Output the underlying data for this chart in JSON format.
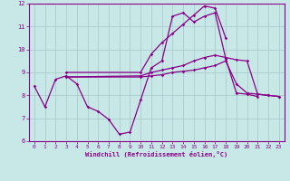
{
  "bg_color": "#c8e8e8",
  "grid_color": "#aacccc",
  "line_color": "#880088",
  "xlabel": "Windchill (Refroidissement éolien,°C)",
  "xlim": [
    -0.5,
    23.5
  ],
  "ylim": [
    6,
    12
  ],
  "yticks": [
    6,
    7,
    8,
    9,
    10,
    11,
    12
  ],
  "xticks": [
    0,
    1,
    2,
    3,
    4,
    5,
    6,
    7,
    8,
    9,
    10,
    11,
    12,
    13,
    14,
    15,
    16,
    17,
    18,
    19,
    20,
    21,
    22,
    23
  ],
  "line1_x": [
    0,
    1,
    2,
    3,
    4,
    5,
    6,
    7,
    8,
    9,
    10,
    11,
    12,
    13,
    14,
    15,
    16,
    17,
    18,
    19,
    20,
    21
  ],
  "line1_y": [
    8.4,
    7.5,
    8.7,
    8.85,
    8.5,
    7.5,
    7.3,
    6.95,
    6.3,
    6.4,
    7.8,
    9.2,
    9.5,
    11.45,
    11.6,
    11.2,
    11.45,
    11.6,
    9.6,
    8.1,
    8.05,
    7.95
  ],
  "line2_x": [
    3,
    10,
    11,
    12,
    13,
    14,
    15,
    16,
    17,
    18
  ],
  "line2_y": [
    9.0,
    9.0,
    9.8,
    10.3,
    10.7,
    11.1,
    11.5,
    11.9,
    11.8,
    10.5
  ],
  "line3_x": [
    3,
    10,
    11,
    12,
    13,
    14,
    15,
    16,
    17,
    18,
    19,
    20,
    21,
    22,
    23
  ],
  "line3_y": [
    8.8,
    8.85,
    9.0,
    9.1,
    9.2,
    9.3,
    9.5,
    9.65,
    9.75,
    9.65,
    9.55,
    9.5,
    8.05,
    8.0,
    7.95
  ],
  "line4_x": [
    3,
    10,
    11,
    12,
    13,
    14,
    15,
    16,
    17,
    18,
    19,
    20,
    21,
    22,
    23
  ],
  "line4_y": [
    8.8,
    8.8,
    8.85,
    8.9,
    9.0,
    9.05,
    9.1,
    9.2,
    9.3,
    9.5,
    8.5,
    8.1,
    8.05,
    8.0,
    7.95
  ]
}
